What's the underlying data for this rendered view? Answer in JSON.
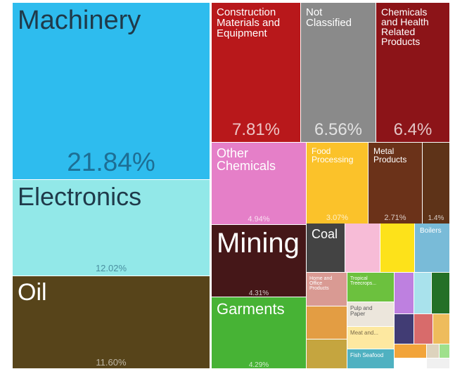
{
  "chart_data": {
    "type": "treemap",
    "title": "",
    "tiles": [
      {
        "label": "Machinery",
        "value": 21.84,
        "value_label": "21.84%",
        "color": "#2ebcee",
        "text_color": "#1f3a4a"
      },
      {
        "label": "Electronics",
        "value": 12.02,
        "value_label": "12.02%",
        "color": "#92e8e8",
        "text_color": "#1f3a4a"
      },
      {
        "label": "Oil",
        "value": 11.6,
        "value_label": "11.60%",
        "color": "#57441a",
        "text_color": "#ffffff"
      },
      {
        "label": "Construction\nMaterials and\nEquipment",
        "value": 7.81,
        "value_label": "7.81%",
        "color": "#b8181b",
        "text_color": "#ffffff"
      },
      {
        "label": "Not\nClassified",
        "value": 6.56,
        "value_label": "6.56%",
        "color": "#8a8a8a",
        "text_color": "#ffffff"
      },
      {
        "label": "Chemicals\nand Health\nRelated\nProducts",
        "value": 6.4,
        "value_label": "6.4%",
        "color": "#8c1418",
        "text_color": "#ffffff"
      },
      {
        "label": "Other\nChemicals",
        "value": 4.94,
        "value_label": "4.94%",
        "color": "#e57fc8",
        "text_color": "#ffffff"
      },
      {
        "label": "Food\nProcessing",
        "value": 3.07,
        "value_label": "3.07%",
        "color": "#fbc22a",
        "text_color": "#ffffff"
      },
      {
        "label": "Metal\nProducts",
        "value": 2.71,
        "value_label": "2.71%",
        "color": "#6b3219",
        "text_color": "#ffffff"
      },
      {
        "label": "",
        "value": 1.4,
        "value_label": "1.4%",
        "color": "#5e3318",
        "text_color": "#ffffff"
      },
      {
        "label": "Mining",
        "value": 4.31,
        "value_label": "4.31%",
        "color": "#451718",
        "text_color": "#ffffff"
      },
      {
        "label": "Garments",
        "value": 4.29,
        "value_label": "4.29%",
        "color": "#47b335",
        "text_color": "#ffffff"
      },
      {
        "label": "Coal",
        "value": null,
        "value_label": "",
        "color": "#434343",
        "text_color": "#ffffff"
      },
      {
        "label": "",
        "value": null,
        "value_label": "",
        "color": "#f7bcd7",
        "text_color": "#ffffff"
      },
      {
        "label": "",
        "value": null,
        "value_label": "",
        "color": "#fde21a",
        "text_color": "#ffffff"
      },
      {
        "label": "Boilers",
        "value": null,
        "value_label": "",
        "color": "#79bbd8",
        "text_color": "#ffffff"
      },
      {
        "label": "Home and\nOffice\nProducts",
        "value": null,
        "value_label": "",
        "color": "#d99a93",
        "text_color": "#ffffff"
      },
      {
        "label": "Tropical\nTreecrops...",
        "value": null,
        "value_label": "",
        "color": "#6cc13e",
        "text_color": "#ffffff"
      },
      {
        "label": "",
        "value": null,
        "value_label": "",
        "color": "#be80e0",
        "text_color": "#ffffff"
      },
      {
        "label": "",
        "value": null,
        "value_label": "",
        "color": "#a9e2ec",
        "text_color": "#ffffff"
      },
      {
        "label": "",
        "value": null,
        "value_label": "",
        "color": "#247027",
        "text_color": "#ffffff"
      },
      {
        "label": "",
        "value": null,
        "value_label": "",
        "color": "#e39d43",
        "text_color": "#ffffff"
      },
      {
        "label": "Pulp and\nPaper",
        "value": null,
        "value_label": "",
        "color": "#ece6dc",
        "text_color": "#5a5a5a"
      },
      {
        "label": "",
        "value": null,
        "value_label": "",
        "color": "#413c74",
        "text_color": "#ffffff"
      },
      {
        "label": "",
        "value": null,
        "value_label": "",
        "color": "#d86b6b",
        "text_color": "#ffffff"
      },
      {
        "label": "",
        "value": null,
        "value_label": "",
        "color": "#eebc5c",
        "text_color": "#ffffff"
      },
      {
        "label": "Meat and...",
        "value": null,
        "value_label": "",
        "color": "#fde8a0",
        "text_color": "#7a6a4a"
      },
      {
        "label": "",
        "value": null,
        "value_label": "",
        "color": "#c5a53f",
        "text_color": "#ffffff"
      },
      {
        "label": "Fish Seafood",
        "value": null,
        "value_label": "",
        "color": "#4fb1c1",
        "text_color": "#ffffff"
      },
      {
        "label": "",
        "value": null,
        "value_label": "",
        "color": "#f2a43a",
        "text_color": "#ffffff"
      },
      {
        "label": "",
        "value": null,
        "value_label": "",
        "color": "#ddd3bd",
        "text_color": "#ffffff"
      },
      {
        "label": "",
        "value": null,
        "value_label": "",
        "color": "#9fe08c",
        "text_color": "#ffffff"
      },
      {
        "label": "",
        "value": null,
        "value_label": "",
        "color": "#f0f0f0",
        "text_color": "#ffffff"
      }
    ]
  }
}
